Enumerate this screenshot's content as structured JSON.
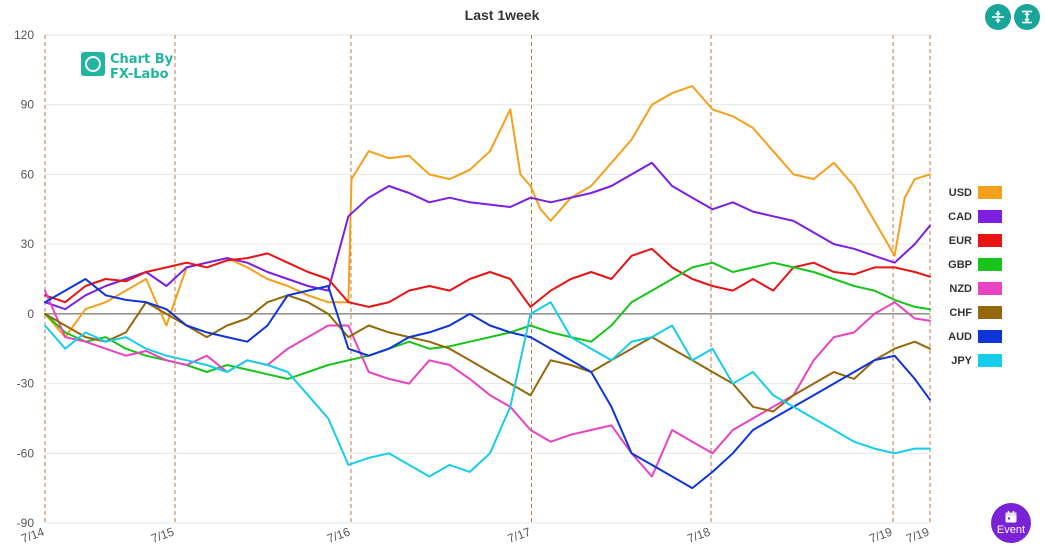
{
  "chart_data": {
    "type": "line",
    "title": "Last 1week",
    "ylim": [
      -90,
      120
    ],
    "yticks": [
      "120",
      "90",
      "60",
      "30",
      "0",
      "-30",
      "-60",
      "-90"
    ],
    "grid": true,
    "legend_position": "right",
    "x_ticks": [
      {
        "label": "7/14",
        "x": 0
      },
      {
        "label": "7/15",
        "x": 25.7
      },
      {
        "label": "7/16",
        "x": 60.5
      },
      {
        "label": "7/17",
        "x": 96.2
      },
      {
        "label": "7/18",
        "x": 131.7
      },
      {
        "label": "7/19",
        "x": 167.7
      },
      {
        "label": "7/19",
        "x": 175
      }
    ],
    "series": [
      {
        "name": "USD",
        "color": "#f5a01a",
        "x": [
          0,
          4,
          8,
          12,
          16,
          20,
          24,
          28,
          32,
          36,
          40,
          44,
          48,
          52,
          56,
          60,
          60.6,
          64,
          68,
          72,
          76,
          80,
          84,
          88,
          92,
          94,
          96,
          98,
          100,
          104,
          108,
          112,
          116,
          120,
          124,
          128,
          132,
          136,
          140,
          144,
          148,
          152,
          156,
          160,
          164,
          168,
          170,
          172,
          175
        ],
        "y": [
          0,
          -10,
          2,
          5,
          10,
          15,
          -5,
          20,
          22,
          24,
          20,
          15,
          12,
          8,
          5,
          5,
          58,
          70,
          67,
          68,
          60,
          58,
          62,
          70,
          88,
          60,
          55,
          45,
          40,
          50,
          55,
          65,
          75,
          90,
          95,
          98,
          88,
          85,
          80,
          70,
          60,
          58,
          65,
          55,
          40,
          25,
          50,
          58,
          60
        ]
      },
      {
        "name": "CAD",
        "color": "#7d1fe0",
        "x": [
          0,
          4,
          8,
          12,
          16,
          20,
          24,
          28,
          32,
          36,
          40,
          44,
          48,
          52,
          56,
          60,
          64,
          68,
          72,
          76,
          80,
          84,
          88,
          92,
          96,
          100,
          104,
          108,
          112,
          116,
          120,
          124,
          128,
          132,
          136,
          140,
          144,
          148,
          152,
          156,
          160,
          164,
          168,
          172,
          175
        ],
        "y": [
          5,
          2,
          8,
          12,
          15,
          18,
          12,
          20,
          22,
          24,
          22,
          18,
          15,
          12,
          10,
          42,
          50,
          55,
          52,
          48,
          50,
          48,
          47,
          46,
          50,
          48,
          50,
          52,
          55,
          60,
          65,
          55,
          50,
          45,
          48,
          44,
          42,
          40,
          35,
          30,
          28,
          25,
          22,
          30,
          38
        ]
      },
      {
        "name": "EUR",
        "color": "#e81313",
        "x": [
          0,
          4,
          8,
          12,
          16,
          20,
          24,
          28,
          32,
          36,
          40,
          44,
          48,
          52,
          56,
          60,
          64,
          68,
          72,
          76,
          80,
          84,
          88,
          92,
          96,
          100,
          104,
          108,
          112,
          116,
          120,
          124,
          128,
          132,
          136,
          140,
          144,
          148,
          152,
          156,
          160,
          164,
          168,
          172,
          175
        ],
        "y": [
          8,
          5,
          12,
          15,
          14,
          18,
          20,
          22,
          20,
          23,
          24,
          26,
          22,
          18,
          15,
          5,
          3,
          5,
          10,
          12,
          10,
          15,
          18,
          15,
          3,
          10,
          15,
          18,
          15,
          25,
          28,
          20,
          15,
          12,
          10,
          15,
          10,
          20,
          22,
          18,
          17,
          20,
          20,
          18,
          16
        ]
      },
      {
        "name": "GBP",
        "color": "#18c41a",
        "x": [
          0,
          4,
          8,
          12,
          16,
          20,
          24,
          28,
          32,
          36,
          40,
          44,
          48,
          52,
          56,
          60,
          64,
          68,
          72,
          76,
          80,
          84,
          88,
          92,
          96,
          100,
          104,
          108,
          112,
          116,
          120,
          124,
          128,
          132,
          136,
          140,
          144,
          148,
          152,
          156,
          160,
          164,
          168,
          172,
          175
        ],
        "y": [
          0,
          -8,
          -12,
          -10,
          -15,
          -18,
          -20,
          -22,
          -25,
          -22,
          -24,
          -26,
          -28,
          -25,
          -22,
          -20,
          -18,
          -15,
          -12,
          -15,
          -14,
          -12,
          -10,
          -8,
          -5,
          -8,
          -10,
          -12,
          -5,
          5,
          10,
          15,
          20,
          22,
          18,
          20,
          22,
          20,
          18,
          15,
          12,
          10,
          6,
          3,
          2
        ]
      },
      {
        "name": "NZD",
        "color": "#e843c2",
        "x": [
          0,
          4,
          8,
          12,
          16,
          20,
          24,
          28,
          32,
          36,
          40,
          44,
          48,
          52,
          56,
          60,
          64,
          68,
          72,
          76,
          80,
          84,
          88,
          92,
          96,
          100,
          104,
          108,
          112,
          116,
          120,
          124,
          128,
          132,
          136,
          140,
          144,
          148,
          152,
          156,
          160,
          164,
          168,
          172,
          175
        ],
        "y": [
          10,
          -10,
          -12,
          -15,
          -18,
          -16,
          -20,
          -22,
          -18,
          -25,
          -20,
          -22,
          -15,
          -10,
          -5,
          -5,
          -25,
          -28,
          -30,
          -20,
          -22,
          -28,
          -35,
          -40,
          -50,
          -55,
          -52,
          -50,
          -48,
          -60,
          -70,
          -50,
          -55,
          -60,
          -50,
          -45,
          -40,
          -35,
          -20,
          -10,
          -8,
          0,
          5,
          -2,
          -3
        ]
      },
      {
        "name": "CHF",
        "color": "#94680c",
        "x": [
          0,
          4,
          8,
          12,
          16,
          20,
          24,
          28,
          32,
          36,
          40,
          44,
          48,
          52,
          56,
          60,
          64,
          68,
          72,
          76,
          80,
          84,
          88,
          92,
          96,
          100,
          104,
          108,
          112,
          116,
          120,
          124,
          128,
          132,
          136,
          140,
          144,
          148,
          152,
          156,
          160,
          164,
          168,
          172,
          175
        ],
        "y": [
          0,
          -5,
          -10,
          -12,
          -8,
          5,
          0,
          -5,
          -10,
          -5,
          -2,
          5,
          8,
          5,
          0,
          -10,
          -5,
          -8,
          -10,
          -12,
          -15,
          -20,
          -25,
          -30,
          -35,
          -20,
          -22,
          -25,
          -20,
          -15,
          -10,
          -15,
          -20,
          -25,
          -30,
          -40,
          -42,
          -35,
          -30,
          -25,
          -28,
          -20,
          -15,
          -12,
          -15
        ]
      },
      {
        "name": "AUD",
        "color": "#0f35d6",
        "x": [
          0,
          4,
          8,
          12,
          16,
          20,
          24,
          28,
          32,
          36,
          40,
          44,
          48,
          52,
          56,
          60,
          64,
          68,
          72,
          76,
          80,
          84,
          88,
          92,
          96,
          100,
          104,
          108,
          112,
          116,
          120,
          124,
          128,
          132,
          136,
          140,
          144,
          148,
          152,
          156,
          160,
          164,
          168,
          172,
          175
        ],
        "y": [
          5,
          10,
          15,
          8,
          6,
          5,
          2,
          -5,
          -8,
          -10,
          -12,
          -5,
          8,
          10,
          12,
          -15,
          -18,
          -15,
          -10,
          -8,
          -5,
          0,
          -5,
          -8,
          -10,
          -15,
          -20,
          -25,
          -40,
          -60,
          -65,
          -70,
          -75,
          -68,
          -60,
          -50,
          -45,
          -40,
          -35,
          -30,
          -25,
          -20,
          -18,
          -28,
          -37
        ]
      },
      {
        "name": "JPY",
        "color": "#16cdeb",
        "x": [
          0,
          4,
          8,
          12,
          16,
          20,
          24,
          28,
          32,
          36,
          40,
          44,
          48,
          52,
          56,
          60,
          64,
          68,
          72,
          76,
          80,
          84,
          88,
          92,
          96,
          100,
          104,
          108,
          112,
          116,
          120,
          124,
          128,
          132,
          136,
          140,
          144,
          148,
          152,
          156,
          160,
          164,
          168,
          172,
          175
        ],
        "y": [
          -5,
          -15,
          -8,
          -12,
          -10,
          -15,
          -18,
          -20,
          -22,
          -25,
          -20,
          -22,
          -25,
          -35,
          -45,
          -65,
          -62,
          -60,
          -65,
          -70,
          -65,
          -68,
          -60,
          -40,
          0,
          5,
          -10,
          -15,
          -20,
          -12,
          -10,
          -5,
          -20,
          -15,
          -30,
          -25,
          -35,
          -40,
          -45,
          -50,
          -55,
          -58,
          -60,
          -58,
          -58
        ]
      }
    ]
  },
  "logo": {
    "line1": "Chart By",
    "line2": "FX-Labo"
  },
  "buttons": {
    "event_label": "Event"
  }
}
